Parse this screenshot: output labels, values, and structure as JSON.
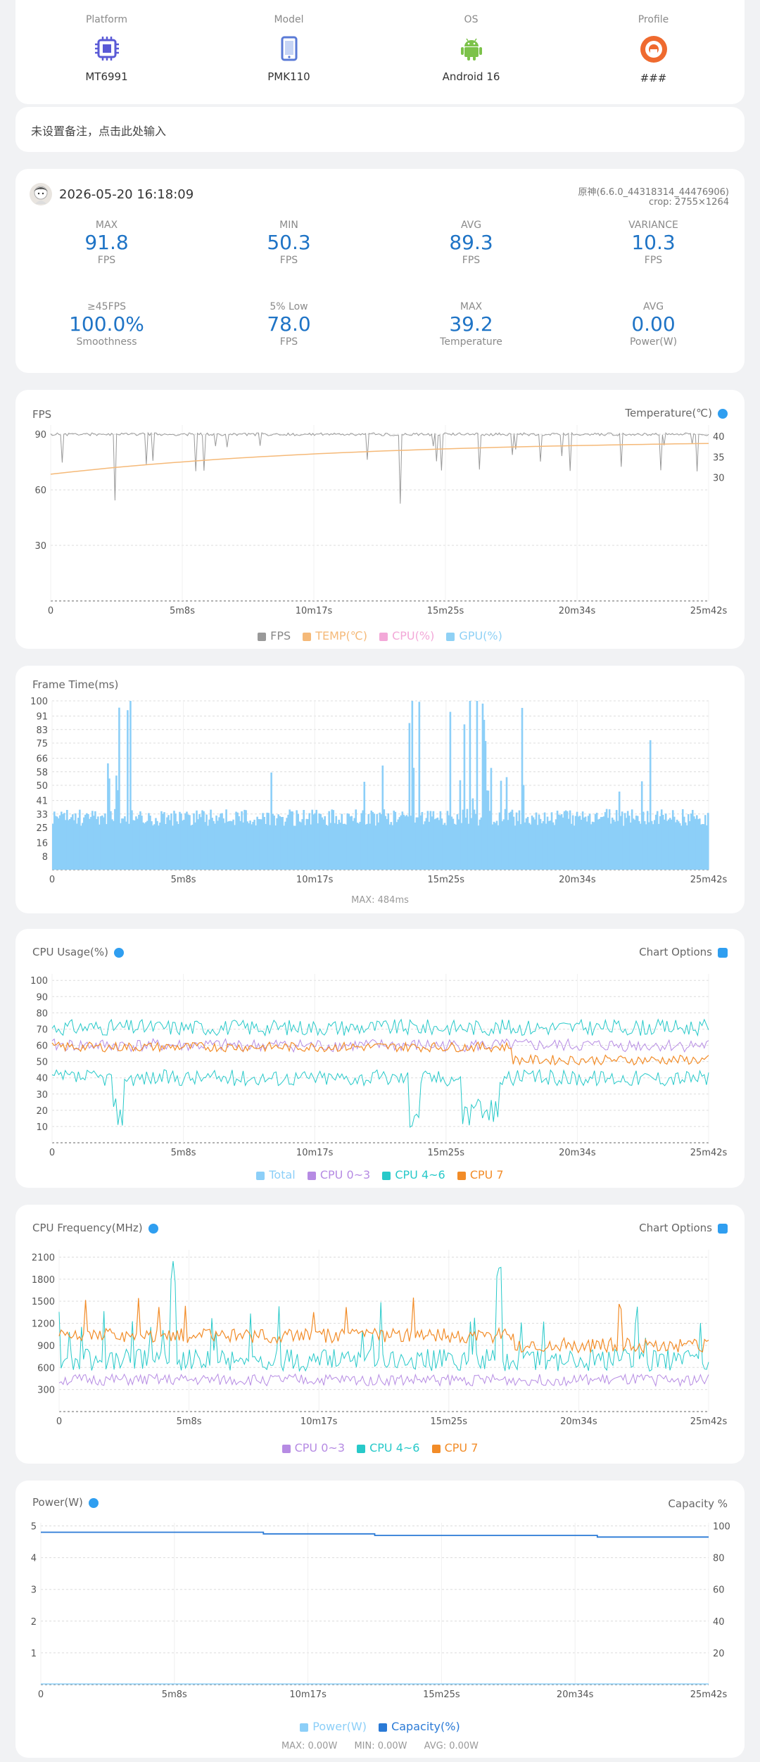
{
  "device": {
    "items": [
      {
        "label": "Platform",
        "value": "MT6991",
        "icon": "chip-icon"
      },
      {
        "label": "Model",
        "value": "PMK110",
        "icon": "phone-icon"
      },
      {
        "label": "OS",
        "value": "Android 16",
        "icon": "android-icon"
      },
      {
        "label": "Profile",
        "value": "###",
        "icon": "profile-icon"
      }
    ]
  },
  "note": {
    "placeholder": "未设置备注，点击此处输入"
  },
  "session": {
    "datetime": "2026-05-20 16:18:09",
    "app": "原神(6.6.0_44318314_44476906)",
    "crop": "crop: 2755×1264",
    "stats_row1": [
      {
        "title": "MAX",
        "value": "91.8",
        "unit": "FPS"
      },
      {
        "title": "MIN",
        "value": "50.3",
        "unit": "FPS"
      },
      {
        "title": "AVG",
        "value": "89.3",
        "unit": "FPS"
      },
      {
        "title": "VARIANCE",
        "value": "10.3",
        "unit": "FPS"
      }
    ],
    "stats_row2": [
      {
        "title": "≥45FPS",
        "value": "100.0%",
        "unit": "Smoothness"
      },
      {
        "title": "5% Low",
        "value": "78.0",
        "unit": "FPS"
      },
      {
        "title": "MAX",
        "value": "39.2",
        "unit": "Temperature"
      },
      {
        "title": "AVG",
        "value": "0.00",
        "unit": "Power(W)"
      }
    ]
  },
  "colors": {
    "accent": "#1f74c6",
    "fps": "#999999",
    "temp": "#f5b978",
    "cpu": "#f3a8d8",
    "gpu": "#8fd1f5",
    "frametime": "#8ccff8",
    "cpu03": "#b68be3",
    "cpu46": "#27c9c9",
    "cpu7": "#f28c28",
    "power": "#8ccff8",
    "capacity": "#2a7ad6"
  },
  "x_ticks": [
    "0",
    "5m8s",
    "10m17s",
    "15m25s",
    "20m34s",
    "25m42s"
  ],
  "fps_chart": {
    "title": "FPS",
    "right_title": "Temperature(℃)",
    "left_ticks": [
      "90",
      "60",
      "30"
    ],
    "right_ticks": [
      "40",
      "35",
      "30"
    ],
    "legend": [
      "FPS",
      "TEMP(℃)",
      "CPU(%)",
      "GPU(%)"
    ]
  },
  "frametime_chart": {
    "title": "Frame Time(ms)",
    "ticks": [
      "100",
      "91",
      "83",
      "75",
      "66",
      "58",
      "50",
      "41",
      "33",
      "25",
      "16",
      "8"
    ],
    "footer": "MAX: 484ms"
  },
  "cpu_usage_chart": {
    "title": "CPU Usage(%)",
    "options": "Chart Options",
    "ticks": [
      "100",
      "90",
      "80",
      "70",
      "60",
      "50",
      "40",
      "30",
      "20",
      "10"
    ],
    "legend": [
      "Total",
      "CPU 0~3",
      "CPU 4~6",
      "CPU 7"
    ]
  },
  "cpu_freq_chart": {
    "title": "CPU Frequency(MHz)",
    "options": "Chart Options",
    "ticks": [
      "2100",
      "1800",
      "1500",
      "1200",
      "900",
      "600",
      "300"
    ],
    "legend": [
      "CPU 0~3",
      "CPU 4~6",
      "CPU 7"
    ]
  },
  "power_chart": {
    "title": "Power(W)",
    "right_title": "Capacity %",
    "left_ticks": [
      "5",
      "4",
      "3",
      "2",
      "1"
    ],
    "right_ticks": [
      "100",
      "80",
      "60",
      "40",
      "20"
    ],
    "legend": [
      "Power(W)",
      "Capacity(%)"
    ],
    "footer_max": "MAX: 0.00W",
    "footer_min": "MIN: 0.00W",
    "footer_avg": "AVG: 0.00W"
  },
  "chart_data": [
    {
      "type": "line",
      "title": "FPS",
      "x": [
        "0",
        "5m8s",
        "10m17s",
        "15m25s",
        "20m34s",
        "25m42s"
      ],
      "ylim": [
        0,
        95
      ],
      "series": [
        {
          "name": "FPS",
          "values": [
            90,
            90,
            90,
            90,
            90,
            90
          ]
        },
        {
          "name": "TEMP(℃)",
          "values": [
            31,
            34,
            36,
            38,
            39,
            39.2
          ]
        }
      ]
    },
    {
      "type": "bar",
      "title": "Frame Time(ms)",
      "x": [
        "0",
        "5m8s",
        "10m17s",
        "15m25s",
        "20m34s",
        "25m42s"
      ],
      "ylim": [
        0,
        100
      ],
      "series": [
        {
          "name": "Frame Time",
          "values": [
            34,
            35,
            34,
            35,
            34,
            35
          ]
        }
      ]
    },
    {
      "type": "line",
      "title": "CPU Usage(%)",
      "x": [
        "0",
        "5m8s",
        "10m17s",
        "15m25s",
        "20m34s",
        "25m42s"
      ],
      "ylim": [
        0,
        100
      ],
      "series": [
        {
          "name": "Total",
          "values": [
            65,
            66,
            65,
            64,
            63,
            63
          ]
        },
        {
          "name": "CPU 0~3",
          "values": [
            60,
            59,
            58,
            58,
            61,
            60
          ]
        },
        {
          "name": "CPU 4~6",
          "values": [
            70,
            72,
            72,
            70,
            72,
            71
          ]
        },
        {
          "name": "CPU 7",
          "values": [
            57,
            58,
            60,
            60,
            50,
            50
          ]
        }
      ]
    },
    {
      "type": "line",
      "title": "CPU Frequency(MHz)",
      "x": [
        "0",
        "5m8s",
        "10m17s",
        "15m25s",
        "20m34s",
        "25m42s"
      ],
      "ylim": [
        0,
        2200
      ],
      "series": [
        {
          "name": "CPU 0~3",
          "values": [
            450,
            450,
            450,
            450,
            450,
            450
          ]
        },
        {
          "name": "CPU 4~6",
          "values": [
            750,
            800,
            750,
            700,
            700,
            700
          ]
        },
        {
          "name": "CPU 7",
          "values": [
            1000,
            1050,
            1050,
            1000,
            900,
            900
          ]
        }
      ]
    },
    {
      "type": "line",
      "title": "Power(W)",
      "x": [
        "0",
        "5m8s",
        "10m17s",
        "15m25s",
        "20m34s",
        "25m42s"
      ],
      "series": [
        {
          "name": "Power(W)",
          "values": [
            0,
            0,
            0,
            0,
            0,
            0
          ]
        },
        {
          "name": "Capacity(%)",
          "values": [
            96,
            96,
            95,
            94,
            94,
            93
          ]
        }
      ]
    }
  ]
}
